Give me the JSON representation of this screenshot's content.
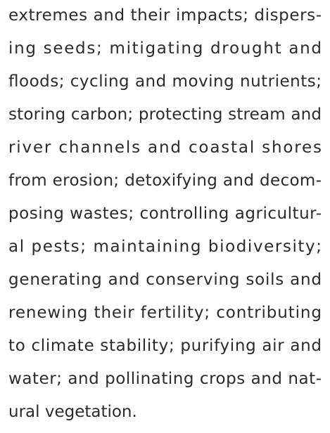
{
  "paragraph": {
    "lines": [
      "extremes and their impacts; dispers-",
      "ing seeds; mitigating drought and",
      "floods; cycling and moving nutrients;",
      "storing carbon; protecting stream and",
      "river channels and coastal shores",
      "from erosion; detoxifying and decom-",
      "posing wastes; controlling agricultur-",
      "al pests; maintaining biodiversity;",
      "generating and conserving soils and",
      "renewing their fertility; contributing",
      "to climate stability; purifying air and",
      "water; and pollinating crops and nat-",
      "ural vegetation."
    ]
  }
}
